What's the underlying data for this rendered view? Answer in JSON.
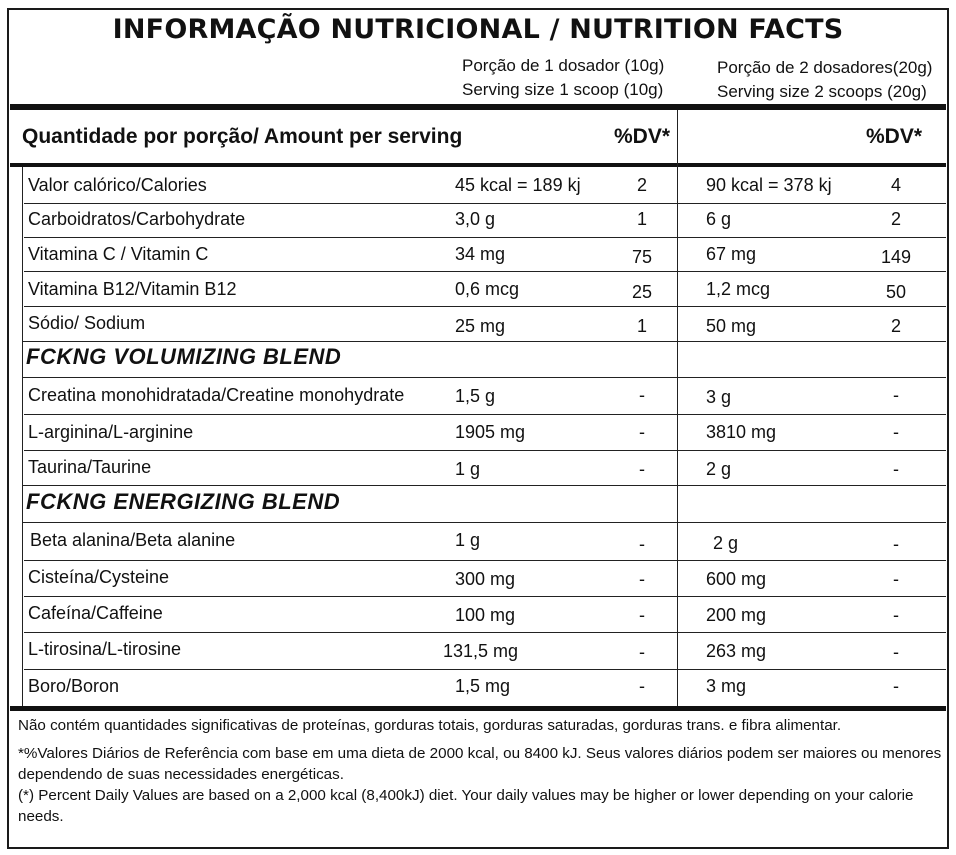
{
  "title": "INFORMAÇÃO NUTRICIONAL / NUTRITION FACTS",
  "serving_1": {
    "line1": "Porção de 1 dosador (10g)",
    "line2": "Serving size 1 scoop (10g)"
  },
  "serving_2": {
    "line1": "Porção de 2 dosadores(20g)",
    "line2": "Serving size 2 scoops (20g)"
  },
  "header": {
    "amount_label": "Quantidade por porção/ Amount per serving",
    "dv1": "%DV*",
    "dv2": "%DV*"
  },
  "main_rows": [
    {
      "name": "Valor calórico/Calories",
      "v1": "45 kcal = 189 kj",
      "dv1": "2",
      "v2": "90 kcal = 378 kj",
      "dv2": "4"
    },
    {
      "name": "Carboidratos/Carbohydrate",
      "v1": "3,0 g",
      "dv1": "1",
      "v2": "6 g",
      "dv2": "2"
    },
    {
      "name": "Vitamina C / Vitamin C",
      "v1": "34 mg",
      "dv1": "75",
      "v2": "67 mg",
      "dv2": "149"
    },
    {
      "name": "Vitamina B12/Vitamin B12",
      "v1": "0,6 mcg",
      "dv1": "25",
      "v2": "1,2 mcg",
      "dv2": "50"
    },
    {
      "name": "Sódio/ Sodium",
      "v1": "25 mg",
      "dv1": "1",
      "v2": "50 mg",
      "dv2": "2"
    }
  ],
  "blend_1": {
    "title": "FCKNG VOLUMIZING BLEND",
    "rows": [
      {
        "name": "Creatina monohidratada/Creatine monohydrate",
        "v1": "1,5 g",
        "dv1": "-",
        "v2": "3 g",
        "dv2": "-"
      },
      {
        "name": "L-arginina/L-arginine",
        "v1": "1905 mg",
        "dv1": "-",
        "v2": "3810 mg",
        "dv2": "-"
      },
      {
        "name": "Taurina/Taurine",
        "v1": "1 g",
        "dv1": "-",
        "v2": "2 g",
        "dv2": "-"
      }
    ]
  },
  "blend_2": {
    "title": "FCKNG ENERGIZING BLEND",
    "rows": [
      {
        "name": "Beta alanina/Beta alanine",
        "v1": "1 g",
        "dv1": "-",
        "v2": "2 g",
        "dv2": "-"
      },
      {
        "name": "Cisteína/Cysteine",
        "v1": "300 mg",
        "dv1": "-",
        "v2": "600 mg",
        "dv2": "-"
      },
      {
        "name": "Cafeína/Caffeine",
        "v1": "100 mg",
        "dv1": "-",
        "v2": "200 mg",
        "dv2": "-"
      },
      {
        "name": "L-tirosina/L-tirosine",
        "v1": "131,5 mg",
        "dv1": "-",
        "v2": "263 mg",
        "dv2": "-"
      },
      {
        "name": "Boro/Boron",
        "v1": "1,5 mg",
        "dv1": "-",
        "v2": "3 mg",
        "dv2": "-"
      }
    ]
  },
  "footnotes": {
    "note_1": "Não contém quantidades significativas de proteínas, gorduras totais, gorduras saturadas, gorduras trans. e fibra alimentar.",
    "note_2": "*%Valores Diários de Referência com base em uma dieta de 2000 kcal, ou 8400 kJ. Seus valores diários podem ser maiores ou menores dependendo de suas necessidades energéticas.",
    "note_3": "(*) Percent Daily Values are based on a 2,000 kcal (8,400kJ) diet. Your daily values may be higher or lower depending on your calorie needs."
  }
}
